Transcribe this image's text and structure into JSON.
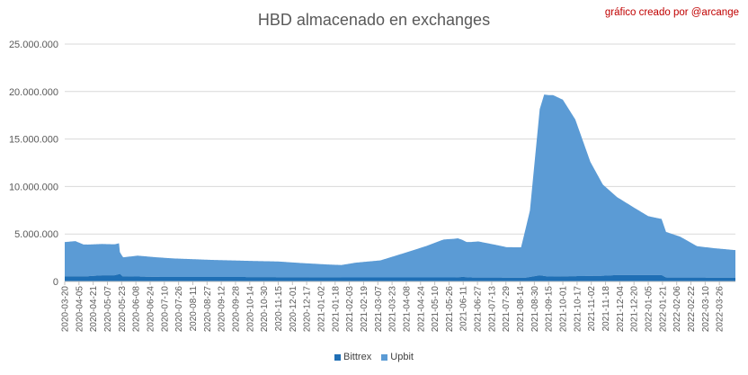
{
  "chart_data": {
    "type": "area",
    "stacked": true,
    "title": "HBD almacenado en exchanges",
    "credit": "gráfico creado por @arcange",
    "ylim": [
      0,
      25000000
    ],
    "yticks": [
      "0",
      "5.000.000",
      "10.000.000",
      "15.000.000",
      "20.000.000",
      "25.000.000"
    ],
    "grid": true,
    "legend_position": "bottom",
    "xlim": [
      "2020-03-20",
      "2022-04-13"
    ],
    "x_tick_labels": [
      "2020-03-20",
      "2020-04-05",
      "2020-04-21",
      "2020-05-07",
      "2020-05-23",
      "2020-06-08",
      "2020-06-24",
      "2020-07-10",
      "2020-07-26",
      "2020-08-11",
      "2020-08-27",
      "2020-09-12",
      "2020-09-28",
      "2020-10-14",
      "2020-10-30",
      "2020-11-15",
      "2020-12-01",
      "2020-12-17",
      "2021-01-02",
      "2021-01-18",
      "2021-02-03",
      "2021-02-19",
      "2021-03-07",
      "2021-03-23",
      "2021-04-08",
      "2021-04-24",
      "2021-05-10",
      "2021-05-26",
      "2021-06-11",
      "2021-06-27",
      "2021-07-13",
      "2021-07-29",
      "2021-08-14",
      "2021-08-30",
      "2021-09-15",
      "2021-10-01",
      "2021-10-17",
      "2021-11-02",
      "2021-11-18",
      "2021-12-04",
      "2021-12-20",
      "2022-01-05",
      "2022-01-21",
      "2022-02-06",
      "2022-02-22",
      "2022-03-10",
      "2022-03-26"
    ],
    "series": [
      {
        "name": "Bittrex",
        "color": "#1f6fb5",
        "points": [
          [
            "2020-03-20",
            550000
          ],
          [
            "2020-04-15",
            550000
          ],
          [
            "2020-05-01",
            650000
          ],
          [
            "2020-05-15",
            650000
          ],
          [
            "2020-05-21",
            800000
          ],
          [
            "2020-05-24",
            550000
          ],
          [
            "2020-07-01",
            480000
          ],
          [
            "2020-10-01",
            470000
          ],
          [
            "2020-12-01",
            450000
          ],
          [
            "2021-02-01",
            430000
          ],
          [
            "2021-04-01",
            420000
          ],
          [
            "2021-06-01",
            420000
          ],
          [
            "2021-06-10",
            480000
          ],
          [
            "2021-06-20",
            420000
          ],
          [
            "2021-08-20",
            400000
          ],
          [
            "2021-09-05",
            650000
          ],
          [
            "2021-09-15",
            520000
          ],
          [
            "2021-10-15",
            560000
          ],
          [
            "2021-11-15",
            600000
          ],
          [
            "2021-12-01",
            680000
          ],
          [
            "2022-01-20",
            680000
          ],
          [
            "2022-01-25",
            420000
          ],
          [
            "2022-04-13",
            400000
          ]
        ]
      },
      {
        "name": "Upbit",
        "color": "#5b9bd5",
        "points": [
          [
            "2020-03-20",
            3600000
          ],
          [
            "2020-04-01",
            3700000
          ],
          [
            "2020-04-10",
            3350000
          ],
          [
            "2020-05-20",
            3250000
          ],
          [
            "2020-05-21",
            2300000
          ],
          [
            "2020-05-25",
            2000000
          ],
          [
            "2020-06-10",
            2200000
          ],
          [
            "2020-07-20",
            1950000
          ],
          [
            "2020-09-01",
            1800000
          ],
          [
            "2020-10-15",
            1700000
          ],
          [
            "2020-11-15",
            1650000
          ],
          [
            "2020-12-10",
            1500000
          ],
          [
            "2021-01-10",
            1350000
          ],
          [
            "2021-01-25",
            1300000
          ],
          [
            "2021-02-10",
            1550000
          ],
          [
            "2021-03-10",
            1800000
          ],
          [
            "2021-04-10",
            2700000
          ],
          [
            "2021-04-30",
            3300000
          ],
          [
            "2021-05-20",
            4000000
          ],
          [
            "2021-06-05",
            4100000
          ],
          [
            "2021-06-15",
            3700000
          ],
          [
            "2021-06-28",
            3800000
          ],
          [
            "2021-07-20",
            3400000
          ],
          [
            "2021-07-30",
            3200000
          ],
          [
            "2021-08-15",
            3200000
          ],
          [
            "2021-08-25",
            7000000
          ],
          [
            "2021-09-05",
            17500000
          ],
          [
            "2021-09-10",
            19100000
          ],
          [
            "2021-09-20",
            19100000
          ],
          [
            "2021-10-01",
            18600000
          ],
          [
            "2021-10-15",
            16500000
          ],
          [
            "2021-11-01",
            12000000
          ],
          [
            "2021-11-15",
            9600000
          ],
          [
            "2021-12-01",
            8200000
          ],
          [
            "2021-12-20",
            7100000
          ],
          [
            "2022-01-05",
            6200000
          ],
          [
            "2022-01-20",
            5900000
          ],
          [
            "2022-01-25",
            4800000
          ],
          [
            "2022-02-10",
            4300000
          ],
          [
            "2022-03-01",
            3300000
          ],
          [
            "2022-03-20",
            3100000
          ],
          [
            "2022-04-13",
            2900000
          ]
        ]
      }
    ]
  }
}
